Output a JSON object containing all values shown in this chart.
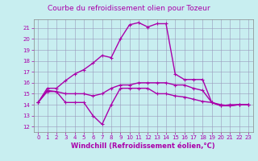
{
  "title": "Courbe du refroidissement olien pour Tozeur",
  "xlabel": "Windchill (Refroidissement éolien,°C)",
  "xlim": [
    -0.5,
    23.5
  ],
  "ylim": [
    11.5,
    21.8
  ],
  "yticks": [
    12,
    13,
    14,
    15,
    16,
    17,
    18,
    19,
    20,
    21
  ],
  "xticks": [
    0,
    1,
    2,
    3,
    4,
    5,
    6,
    7,
    8,
    9,
    10,
    11,
    12,
    13,
    14,
    15,
    16,
    17,
    18,
    19,
    20,
    21,
    22,
    23
  ],
  "bg_color": "#c8eef0",
  "line_color": "#aa00aa",
  "grid_color": "#9999bb",
  "lines": [
    {
      "x": [
        0,
        1,
        2,
        3,
        4,
        5,
        6,
        7,
        8,
        9,
        10,
        11,
        12,
        13,
        14,
        15,
        16,
        17,
        18,
        19,
        20,
        21,
        22,
        23
      ],
      "y": [
        14.2,
        15.5,
        15.5,
        16.2,
        16.8,
        17.2,
        17.8,
        18.5,
        18.3,
        20.0,
        21.3,
        21.5,
        21.1,
        21.4,
        21.4,
        16.8,
        16.3,
        16.3,
        16.3,
        14.2,
        13.9,
        14.0,
        14.0,
        14.0
      ]
    },
    {
      "x": [
        0,
        1,
        2,
        3,
        4,
        5,
        6,
        7,
        8,
        9,
        10,
        11,
        12,
        13,
        14,
        15,
        16,
        17,
        18,
        19,
        20,
        21,
        22,
        23
      ],
      "y": [
        14.2,
        15.3,
        15.2,
        14.2,
        14.2,
        14.2,
        13.0,
        12.2,
        14.0,
        15.5,
        15.5,
        15.5,
        15.5,
        15.0,
        15.0,
        14.8,
        14.7,
        14.5,
        14.3,
        14.2,
        13.9,
        13.9,
        14.0,
        14.0
      ]
    },
    {
      "x": [
        0,
        1,
        2,
        3,
        4,
        5,
        6,
        7,
        8,
        9,
        10,
        11,
        12,
        13,
        14,
        15,
        16,
        17,
        18,
        19,
        20,
        21,
        22,
        23
      ],
      "y": [
        14.2,
        15.2,
        15.2,
        15.0,
        15.0,
        15.0,
        14.8,
        15.0,
        15.5,
        15.8,
        15.8,
        16.0,
        16.0,
        16.0,
        16.0,
        15.8,
        15.8,
        15.5,
        15.3,
        14.2,
        14.0,
        13.9,
        14.0,
        14.0
      ]
    }
  ],
  "marker": "+",
  "markersize": 3,
  "linewidth": 1.0,
  "title_fontsize": 6.5,
  "label_fontsize": 6.0,
  "tick_fontsize": 5.0
}
